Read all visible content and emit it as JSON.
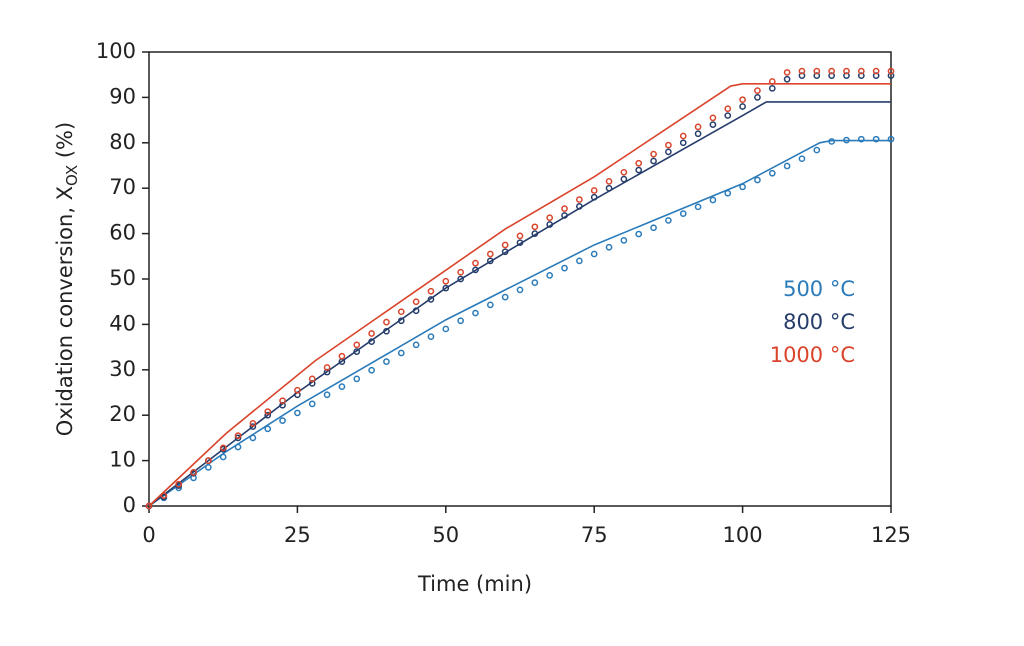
{
  "chart_data": {
    "type": "line",
    "xlabel": "Time (min)",
    "ylabel": "Oxidation conversion, X",
    "ylabel_sub": "OX",
    "ylabel_suffix": " (%)",
    "xlim": [
      0,
      125
    ],
    "xticks": [
      0,
      25,
      50,
      75,
      100,
      125
    ],
    "ylim": [
      0,
      100
    ],
    "yticks": [
      0,
      10,
      20,
      30,
      40,
      50,
      60,
      70,
      80,
      90,
      100
    ],
    "grid": false,
    "x": [
      0,
      2.5,
      5,
      7.5,
      10,
      12.5,
      15,
      17.5,
      20,
      22.5,
      25,
      27.5,
      30,
      32.5,
      35,
      37.5,
      40,
      42.5,
      45,
      47.5,
      50,
      52.5,
      55,
      57.5,
      60,
      62.5,
      65,
      67.5,
      70,
      72.5,
      75,
      77.5,
      80,
      82.5,
      85,
      87.5,
      90,
      92.5,
      95,
      97.5,
      100,
      102.5,
      105,
      107.5,
      110,
      112.5,
      115,
      117.5,
      120,
      122.5,
      125
    ],
    "series": [
      {
        "name": "500 °C",
        "color": "#2b7bba",
        "line_x": [
          0,
          13,
          25,
          50,
          75,
          100,
          113,
          115,
          125
        ],
        "line_values": [
          0,
          12,
          22,
          41,
          57.5,
          71,
          80,
          80.5,
          80.5
        ],
        "values": [
          0,
          1.8,
          4,
          6.2,
          8.5,
          10.8,
          13,
          15,
          17,
          18.8,
          20.5,
          22.5,
          24.5,
          26.3,
          28,
          29.9,
          31.8,
          33.7,
          35.5,
          37.3,
          39,
          40.8,
          42.5,
          44.3,
          46,
          47.6,
          49.2,
          50.8,
          52.4,
          54,
          55.5,
          57,
          58.5,
          59.9,
          61.3,
          62.9,
          64.4,
          65.9,
          67.4,
          68.9,
          70.3,
          71.8,
          73.3,
          74.9,
          76.5,
          78.4,
          80.3,
          80.6,
          80.8,
          80.8,
          80.8
        ]
      },
      {
        "name": "800 °C",
        "color": "#263d6b",
        "line_x": [
          0,
          13,
          25,
          50,
          75,
          100,
          104,
          125
        ],
        "line_values": [
          0,
          13,
          25,
          48,
          67.5,
          86,
          89,
          89
        ],
        "values": [
          0,
          2,
          4.5,
          7.2,
          10,
          12.5,
          15,
          17.5,
          20,
          22.2,
          24.5,
          27,
          29.5,
          31.8,
          34,
          36.2,
          38.5,
          40.8,
          43,
          45.5,
          48,
          50,
          52,
          54,
          56,
          58,
          60,
          62,
          64,
          66,
          68,
          70,
          72,
          74,
          76,
          78,
          80,
          82,
          84,
          86,
          88,
          90,
          92,
          94,
          94.8,
          94.8,
          94.8,
          94.8,
          94.8,
          94.8,
          94.8
        ]
      },
      {
        "name": "1000 °C",
        "color": "#d9442b",
        "line_x": [
          0,
          13,
          28,
          60,
          75,
          98,
          100,
          125
        ],
        "line_values": [
          0,
          16,
          32,
          61,
          72.5,
          92.5,
          93,
          93
        ],
        "values": [
          0,
          2.3,
          4.8,
          7.4,
          10,
          12.8,
          15.5,
          18.2,
          20.8,
          23.2,
          25.5,
          28,
          30.5,
          33,
          35.5,
          38,
          40.5,
          42.8,
          45,
          47.3,
          49.5,
          51.5,
          53.5,
          55.5,
          57.5,
          59.5,
          61.5,
          63.5,
          65.5,
          67.5,
          69.5,
          71.5,
          73.5,
          75.5,
          77.5,
          79.5,
          81.5,
          83.5,
          85.5,
          87.5,
          89.5,
          91.5,
          93.5,
          95.5,
          95.8,
          95.8,
          95.8,
          95.8,
          95.8,
          95.8,
          95.8
        ]
      }
    ]
  }
}
